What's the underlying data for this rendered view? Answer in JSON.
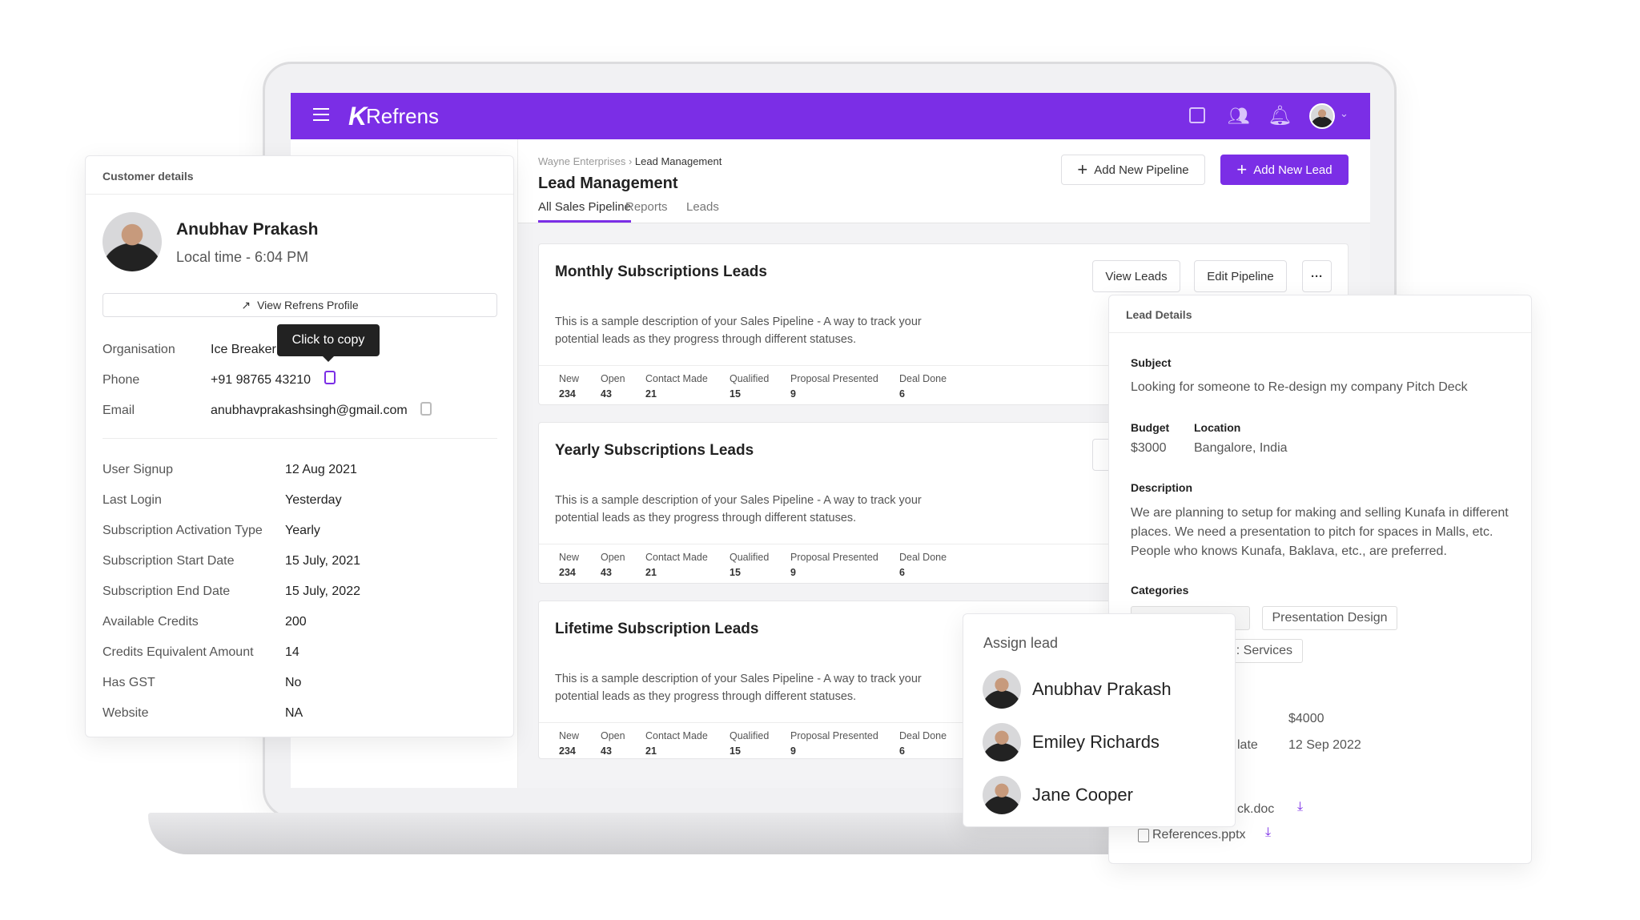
{
  "app": {
    "brand": "Refrens",
    "accent": "#7b2ee6"
  },
  "header": {
    "icons": [
      "menu-icon",
      "gift-icon",
      "team-icon",
      "bell-icon",
      "avatar",
      "chevron-down-icon"
    ]
  },
  "breadcrumb": {
    "parent": "Wayne Enterprises",
    "current": "Lead Management"
  },
  "page": {
    "title": "Lead Management",
    "add_pipeline": "Add New Pipeline",
    "add_lead": "Add New Lead"
  },
  "tabs": [
    {
      "label": "All Sales Pipeline",
      "active": true
    },
    {
      "label": "Reports"
    },
    {
      "label": "Leads"
    }
  ],
  "pipelines": [
    {
      "title": "Monthly Subscriptions Leads",
      "desc1": "This is a sample description of your Sales Pipeline - A way to track your",
      "desc2": "potential leads as they progress through different statuses.",
      "view": "View Leads",
      "edit": "Edit Pipeline",
      "more": "···",
      "stats": [
        {
          "label": "New",
          "value": "234"
        },
        {
          "label": "Open",
          "value": "43"
        },
        {
          "label": "Contact Made",
          "value": "21"
        },
        {
          "label": "Qualified",
          "value": "15"
        },
        {
          "label": "Proposal Presented",
          "value": "9"
        },
        {
          "label": "Deal Done",
          "value": "6"
        }
      ]
    },
    {
      "title": "Yearly Subscriptions Leads",
      "desc1": "This is a sample description of your Sales Pipeline - A way to track your",
      "desc2": "potential leads as they progress through different statuses.",
      "stats": [
        {
          "label": "New",
          "value": "234"
        },
        {
          "label": "Open",
          "value": "43"
        },
        {
          "label": "Contact Made",
          "value": "21"
        },
        {
          "label": "Qualified",
          "value": "15"
        },
        {
          "label": "Proposal Presented",
          "value": "9"
        },
        {
          "label": "Deal Done",
          "value": "6"
        }
      ]
    },
    {
      "title": "Lifetime Subscription Leads",
      "desc1": "This is a sample description of your Sales Pipeline - A way to track your",
      "desc2": "potential leads as they progress through different statuses.",
      "stats": [
        {
          "label": "New",
          "value": "234"
        },
        {
          "label": "Open",
          "value": "43"
        },
        {
          "label": "Contact Made",
          "value": "21"
        },
        {
          "label": "Qualified",
          "value": "15"
        },
        {
          "label": "Proposal Presented",
          "value": "9"
        },
        {
          "label": "Deal Done",
          "value": "6"
        }
      ]
    }
  ],
  "customer": {
    "header": "Customer details",
    "name": "Anubhav Prakash",
    "local_time": "Local time - 6:04 PM",
    "profile_btn": "View Refrens Profile",
    "tooltip": "Click to copy",
    "contact": [
      {
        "label": "Organisation",
        "value": "Ice Breaker"
      },
      {
        "label": "Phone",
        "value": "+91 98765 43210"
      },
      {
        "label": "Email",
        "value": "anubhavprakashsingh@gmail.com"
      }
    ],
    "details": [
      {
        "label": "User Signup",
        "value": "12 Aug 2021"
      },
      {
        "label": "Last Login",
        "value": "Yesterday"
      },
      {
        "label": "Subscription Activation Type",
        "value": "Yearly"
      },
      {
        "label": "Subscription Start Date",
        "value": "15 July, 2021"
      },
      {
        "label": "Subscription End Date",
        "value": "15 July, 2022"
      },
      {
        "label": "Available Credits",
        "value": "200"
      },
      {
        "label": "Credits Equivalent Amount",
        "value": "14"
      },
      {
        "label": "Has GST",
        "value": "No"
      },
      {
        "label": "Website",
        "value": "NA"
      }
    ]
  },
  "lead": {
    "header": "Lead Details",
    "subject_label": "Subject",
    "subject": "Looking for someone to Re-design my company Pitch Deck",
    "budget_label": "Budget",
    "budget": "$3000",
    "location_label": "Location",
    "location": "Bangalore, India",
    "description_label": "Description",
    "desc1": "We are planning to setup for making and selling Kunafa in different",
    "desc2": "places. We need a presentation to pitch for spaces in Malls, etc.",
    "desc3": "People who knows Kunafa, Baklava, etc., are preferred.",
    "categories_label": "Categories",
    "cat2": "Presentation Design",
    "cat3": ": Services",
    "amount": "$4000",
    "date_label": "late",
    "date": "12 Sep 2022",
    "file1": "ck.doc",
    "file2": "References.pptx"
  },
  "assign": {
    "title": "Assign lead",
    "people": [
      "Anubhav Prakash",
      "Emiley Richards",
      "Jane Cooper"
    ]
  }
}
